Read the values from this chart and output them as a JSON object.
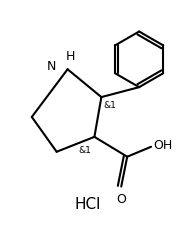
{
  "title": "",
  "background_color": "#ffffff",
  "hcl_label": "HCl",
  "stereo_label": "&1",
  "nh_label": "H",
  "n_label": "N",
  "oh_label": "OH",
  "o_label": "O",
  "font_size_labels": 9,
  "font_size_hcl": 11,
  "line_color": "#000000",
  "line_width": 1.5
}
